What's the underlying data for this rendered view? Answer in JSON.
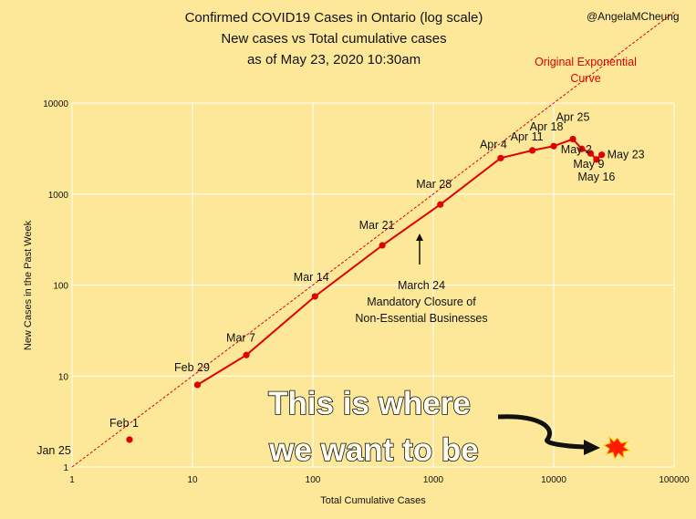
{
  "header": {
    "title_lines": [
      "Confirmed COVID19 Cases in Ontario (log scale)",
      "New cases vs Total cumulative cases",
      "as of May 23, 2020 10:30am"
    ],
    "handle": "@AngelaMCheung"
  },
  "annotations": {
    "exponential_label_lines": [
      "Original Exponential",
      "Curve"
    ],
    "note_lines": [
      "March 24",
      "Mandatory Closure of",
      "Non-Essential Businesses"
    ],
    "goal_lines": [
      "This is where",
      "we want to be"
    ]
  },
  "colors": {
    "background": "#fde89a",
    "series": "#e00000",
    "reference": "#e00000",
    "grid": "#ffffff"
  },
  "chart_data": {
    "type": "scatter",
    "title": "Confirmed COVID19 Cases in Ontario (log scale)",
    "subtitle": "New cases vs Total cumulative cases as of May 23, 2020 10:30am",
    "xlabel": "Total Cumulative Cases",
    "ylabel": "New Cases in the Past Week",
    "xscale": "log",
    "yscale": "log",
    "xlim": [
      1,
      100000
    ],
    "ylim": [
      1,
      10000
    ],
    "x_ticks": [
      "1",
      "10",
      "100",
      "1000",
      "10000",
      "100000"
    ],
    "y_ticks": [
      "1",
      "10",
      "100",
      "1000",
      "10000"
    ],
    "grid": true,
    "series": [
      {
        "points": [
          {
            "label": "Jan 25",
            "x": 1,
            "y": 1
          },
          {
            "label": "Feb 1",
            "x": 3,
            "y": 2
          },
          {
            "label": "Feb 29",
            "x": 11,
            "y": 8
          },
          {
            "label": "Mar 7",
            "x": 28,
            "y": 17
          },
          {
            "label": "Mar 14",
            "x": 104,
            "y": 75
          },
          {
            "label": "Mar 21",
            "x": 377,
            "y": 273
          },
          {
            "label": "Mar 28",
            "x": 1144,
            "y": 767
          },
          {
            "label": "Apr 4",
            "x": 3630,
            "y": 2486
          },
          {
            "label": "Apr 11",
            "x": 6648,
            "y": 3018
          },
          {
            "label": "Apr 18",
            "x": 10010,
            "y": 3362
          },
          {
            "label": "Apr 25",
            "x": 14432,
            "y": 4022
          },
          {
            "label": "May 2",
            "x": 17119,
            "y": 3140
          },
          {
            "label": "May 9",
            "x": 20238,
            "y": 2800
          },
          {
            "label": "May 16",
            "x": 22653,
            "y": 2400
          },
          {
            "label": "May 23",
            "x": 25040,
            "y": 2700
          }
        ]
      }
    ],
    "reference_line": {
      "name": "Original Exponential Curve",
      "style": "dashed",
      "from": [
        1,
        1
      ],
      "to": [
        100000,
        100000
      ]
    }
  }
}
